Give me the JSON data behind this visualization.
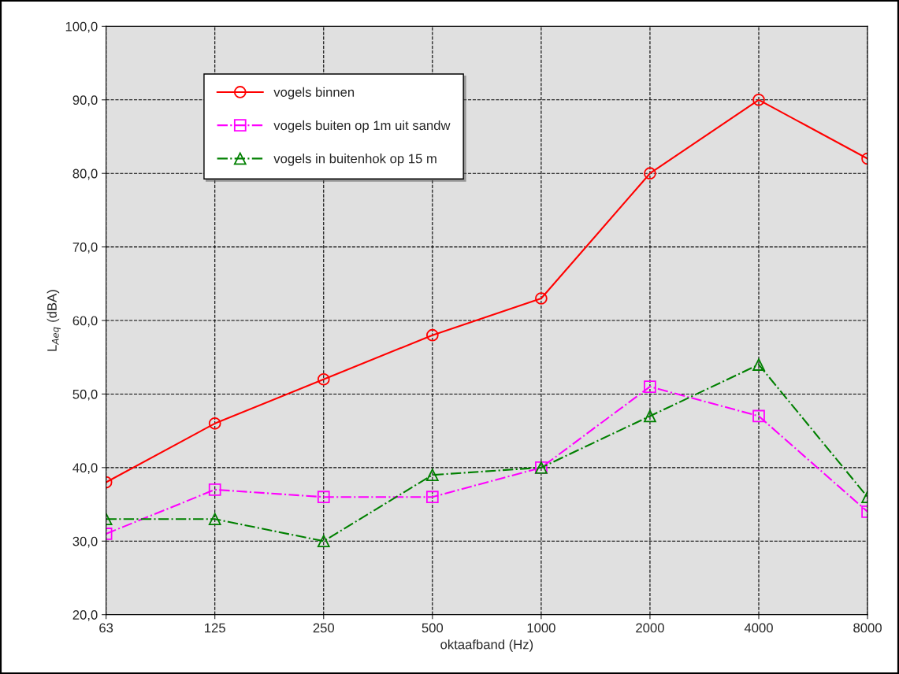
{
  "chart_data": {
    "type": "line",
    "xlabel": "oktaafband (Hz)",
    "ylabel": "L$_{Aeq}$ (dBA)",
    "categories": [
      "63",
      "125",
      "250",
      "500",
      "1000",
      "2000",
      "4000",
      "8000"
    ],
    "series": [
      {
        "name": "vogels binnen",
        "color": "#ff0000",
        "marker": "circle",
        "line_style": "solid",
        "values": [
          38,
          46,
          52,
          58,
          63,
          80,
          90,
          82
        ]
      },
      {
        "name": "vogels buiten op 1m uit sandw",
        "color": "#ff00ff",
        "marker": "square",
        "line_style": "dashdot",
        "values": [
          31,
          37,
          36,
          36,
          40,
          51,
          47,
          34
        ]
      },
      {
        "name": "vogels in buitenhok op 15 m",
        "color": "#008000",
        "marker": "triangle",
        "line_style": "dashdot",
        "values": [
          33,
          33,
          30,
          39,
          40,
          47,
          54,
          36
        ]
      }
    ],
    "ylim": [
      20,
      100
    ],
    "yticks": [
      {
        "value": 20,
        "label": "20,0"
      },
      {
        "value": 30,
        "label": "30,0"
      },
      {
        "value": 40,
        "label": "40,0"
      },
      {
        "value": 50,
        "label": "50,0"
      },
      {
        "value": 60,
        "label": "60,0"
      },
      {
        "value": 70,
        "label": "70,0"
      },
      {
        "value": 80,
        "label": "80,0"
      },
      {
        "value": 90,
        "label": "90,0"
      },
      {
        "value": 100,
        "label": "100,0"
      }
    ],
    "grid": true,
    "legend": "top left"
  }
}
